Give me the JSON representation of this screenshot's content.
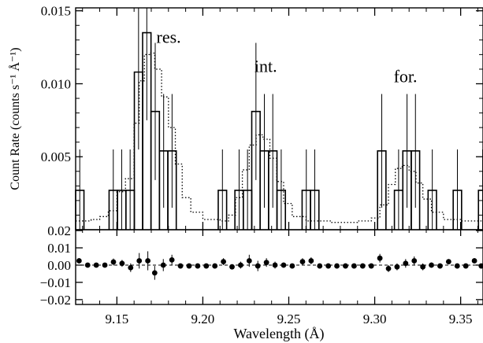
{
  "chart_data": {
    "type": "line",
    "xlabel": "Wavelength (Å)",
    "x_ticks": [
      "9.15",
      "9.20",
      "9.25",
      "9.30",
      "9.35"
    ],
    "x_tick_values": [
      9.15,
      9.2,
      9.25,
      9.3,
      9.35
    ],
    "xlim": [
      9.126,
      9.363
    ],
    "top_panel": {
      "ylabel": "Count Rate (counts s⁻¹ Å⁻¹)",
      "ylim": [
        0.0,
        0.0152
      ],
      "y_ticks": [
        "0.005",
        "0.010",
        "0.015"
      ],
      "y_tick_values": [
        0.005,
        0.01,
        0.015
      ],
      "annotations": [
        {
          "text": "res.",
          "x": 9.173,
          "y": 0.0128
        },
        {
          "text": "int.",
          "x": 9.23,
          "y": 0.0108
        },
        {
          "text": "for.",
          "x": 9.311,
          "y": 0.0101
        }
      ],
      "bin_width": 0.00488,
      "bins": [
        {
          "x": 9.1284,
          "y": 0.0027,
          "err": 0.0028
        },
        {
          "x": 9.1479,
          "y": 0.0027,
          "err": 0.0028
        },
        {
          "x": 9.1528,
          "y": 0.0027,
          "err": 0.0028
        },
        {
          "x": 9.1577,
          "y": 0.0027,
          "err": 0.0028
        },
        {
          "x": 9.1626,
          "y": 0.0108,
          "err": 0.0053
        },
        {
          "x": 9.1674,
          "y": 0.0135,
          "err": 0.006
        },
        {
          "x": 9.1723,
          "y": 0.0081,
          "err": 0.0047
        },
        {
          "x": 9.1772,
          "y": 0.0054,
          "err": 0.0039
        },
        {
          "x": 9.1821,
          "y": 0.0054,
          "err": 0.0039
        },
        {
          "x": 9.2114,
          "y": 0.0027,
          "err": 0.0028
        },
        {
          "x": 9.2211,
          "y": 0.0027,
          "err": 0.0028
        },
        {
          "x": 9.226,
          "y": 0.0027,
          "err": 0.0028
        },
        {
          "x": 9.2309,
          "y": 0.0081,
          "err": 0.0047
        },
        {
          "x": 9.2358,
          "y": 0.0054,
          "err": 0.0039
        },
        {
          "x": 9.2407,
          "y": 0.0054,
          "err": 0.0039
        },
        {
          "x": 9.2456,
          "y": 0.0027,
          "err": 0.0028
        },
        {
          "x": 9.2602,
          "y": 0.0027,
          "err": 0.0028
        },
        {
          "x": 9.2651,
          "y": 0.0027,
          "err": 0.0028
        },
        {
          "x": 9.3041,
          "y": 0.0054,
          "err": 0.0039
        },
        {
          "x": 9.3139,
          "y": 0.0027,
          "err": 0.0028
        },
        {
          "x": 9.3188,
          "y": 0.0054,
          "err": 0.0039
        },
        {
          "x": 9.3237,
          "y": 0.0054,
          "err": 0.0039
        },
        {
          "x": 9.3335,
          "y": 0.0027,
          "err": 0.0028
        },
        {
          "x": 9.3481,
          "y": 0.0027,
          "err": 0.0028
        },
        {
          "x": 9.3628,
          "y": 0.0027,
          "err": 0.0028
        }
      ],
      "model": [
        [
          9.126,
          0.0006
        ],
        [
          9.135,
          0.0007
        ],
        [
          9.14,
          0.0009
        ],
        [
          9.145,
          0.0013
        ],
        [
          9.15,
          0.0026
        ],
        [
          9.155,
          0.0035
        ],
        [
          9.16,
          0.0073
        ],
        [
          9.163,
          0.0102
        ],
        [
          9.166,
          0.012
        ],
        [
          9.169,
          0.0121
        ],
        [
          9.172,
          0.011
        ],
        [
          9.176,
          0.0091
        ],
        [
          9.18,
          0.007
        ],
        [
          9.184,
          0.0045
        ],
        [
          9.188,
          0.0022
        ],
        [
          9.193,
          0.0012
        ],
        [
          9.2,
          0.0007
        ],
        [
          9.21,
          0.0006
        ],
        [
          9.215,
          0.001
        ],
        [
          9.219,
          0.0022
        ],
        [
          9.223,
          0.0041
        ],
        [
          9.227,
          0.0058
        ],
        [
          9.231,
          0.0065
        ],
        [
          9.235,
          0.0062
        ],
        [
          9.239,
          0.0049
        ],
        [
          9.243,
          0.0033
        ],
        [
          9.247,
          0.0018
        ],
        [
          9.252,
          0.0009
        ],
        [
          9.26,
          0.0006
        ],
        [
          9.275,
          0.0005
        ],
        [
          9.29,
          0.0006
        ],
        [
          9.298,
          0.0008
        ],
        [
          9.303,
          0.0017
        ],
        [
          9.308,
          0.0031
        ],
        [
          9.312,
          0.0042
        ],
        [
          9.316,
          0.0044
        ],
        [
          9.32,
          0.004
        ],
        [
          9.324,
          0.0032
        ],
        [
          9.328,
          0.0021
        ],
        [
          9.333,
          0.0012
        ],
        [
          9.34,
          0.0007
        ],
        [
          9.35,
          0.0006
        ],
        [
          9.363,
          0.0006
        ]
      ]
    },
    "bottom_panel": {
      "ylim": [
        -0.0228,
        0.0205
      ],
      "y_ticks": [
        "0.02",
        "0.01",
        "0.00",
        "−0.01",
        "−0.02"
      ],
      "y_tick_values": [
        0.02,
        0.01,
        0.0,
        -0.01,
        -0.02
      ],
      "residuals": [
        [
          9.128,
          0.0025,
          0.0015
        ],
        [
          9.133,
          0.0,
          0.001
        ],
        [
          9.138,
          0.0,
          0.001
        ],
        [
          9.143,
          0.0,
          0.001
        ],
        [
          9.148,
          0.0018,
          0.002
        ],
        [
          9.153,
          0.001,
          0.002
        ],
        [
          9.158,
          -0.0015,
          0.0025
        ],
        [
          9.163,
          0.0025,
          0.0045
        ],
        [
          9.168,
          0.0025,
          0.0055
        ],
        [
          9.172,
          -0.0045,
          0.004
        ],
        [
          9.177,
          0.0,
          0.0035
        ],
        [
          9.182,
          0.003,
          0.003
        ],
        [
          9.187,
          -0.0005,
          0.001
        ],
        [
          9.192,
          -0.0005,
          0.0008
        ],
        [
          9.197,
          -0.0005,
          0.0008
        ],
        [
          9.202,
          -0.0005,
          0.0008
        ],
        [
          9.207,
          -0.0005,
          0.0008
        ],
        [
          9.212,
          0.002,
          0.002
        ],
        [
          9.217,
          -0.001,
          0.0015
        ],
        [
          9.222,
          0.0,
          0.002
        ],
        [
          9.227,
          0.0025,
          0.0035
        ],
        [
          9.232,
          -0.0005,
          0.003
        ],
        [
          9.237,
          0.0015,
          0.0025
        ],
        [
          9.242,
          0.0,
          0.002
        ],
        [
          9.247,
          0.0,
          0.0015
        ],
        [
          9.252,
          -0.0005,
          0.001
        ],
        [
          9.258,
          0.002,
          0.002
        ],
        [
          9.263,
          0.0025,
          0.002
        ],
        [
          9.268,
          -0.0005,
          0.0008
        ],
        [
          9.273,
          -0.0005,
          0.0008
        ],
        [
          9.278,
          -0.0005,
          0.0008
        ],
        [
          9.283,
          -0.0005,
          0.0008
        ],
        [
          9.288,
          -0.0005,
          0.0008
        ],
        [
          9.293,
          -0.0005,
          0.0008
        ],
        [
          9.298,
          -0.0005,
          0.0008
        ],
        [
          9.303,
          0.004,
          0.0025
        ],
        [
          9.308,
          -0.002,
          0.002
        ],
        [
          9.313,
          -0.001,
          0.002
        ],
        [
          9.318,
          0.001,
          0.0025
        ],
        [
          9.323,
          0.0025,
          0.0025
        ],
        [
          9.328,
          -0.001,
          0.002
        ],
        [
          9.333,
          0.0,
          0.0015
        ],
        [
          9.338,
          -0.0005,
          0.001
        ],
        [
          9.343,
          0.002,
          0.0015
        ],
        [
          9.348,
          -0.0005,
          0.0008
        ],
        [
          9.353,
          -0.0005,
          0.0008
        ],
        [
          9.358,
          0.0025,
          0.0015
        ],
        [
          9.362,
          -0.0005,
          0.0008
        ]
      ]
    }
  }
}
